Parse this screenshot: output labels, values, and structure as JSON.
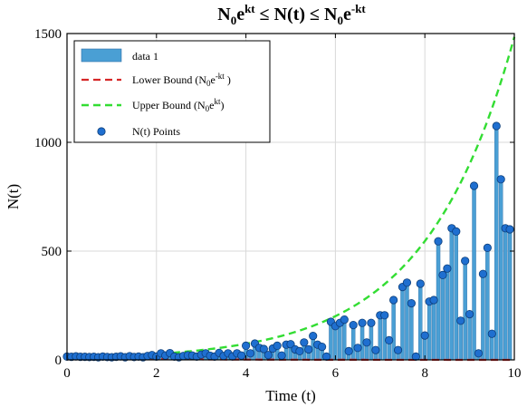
{
  "chart_data": {
    "type": "bar",
    "title": "N₀eᵏᵗ ≤ N(t) ≤ N₀e⁻ᵏᵗ",
    "title_parts": {
      "left_base": "N",
      "left_sub": "0",
      "left_e": "e",
      "left_sup": "kt",
      "middle": " ≤ N(t) ≤ ",
      "right_base": "N",
      "right_sub": "0",
      "right_e": "e",
      "right_sup": "-kt"
    },
    "xlabel": "Time (t)",
    "ylabel": "N(t)",
    "xlim": [
      0,
      10
    ],
    "ylim": [
      0,
      1500
    ],
    "xticks": [
      0,
      2,
      4,
      6,
      8,
      10
    ],
    "yticks": [
      0,
      500,
      1000,
      1500
    ],
    "grid": true,
    "legend_position": "top-left",
    "colors": {
      "bar_fill": "#4a9fd4",
      "bar_edge": "#2f6fa8",
      "marker_fill": "#1f6fd0",
      "marker_edge": "#0d3f7a",
      "lower_bound": "#d62728",
      "upper_bound": "#33dd33",
      "grid": "#d9d9d9"
    },
    "legend": [
      {
        "key": "data1",
        "label": "data 1",
        "kind": "bar"
      },
      {
        "key": "lower",
        "label_base": "Lower Bound (N",
        "label_sub": "0",
        "label_mid": "e",
        "label_sup": "-kt",
        "label_end": " )",
        "kind": "dashed-red"
      },
      {
        "key": "upper",
        "label_base": "Upper Bound (N",
        "label_sub": "0",
        "label_mid": "e",
        "label_sup": "kt",
        "label_end": ")",
        "kind": "dashed-green"
      },
      {
        "key": "points",
        "label": "N(t) Points",
        "kind": "marker"
      }
    ],
    "upper_bound": {
      "N0": 10,
      "k": 0.5
    },
    "lower_bound": {
      "N0": 10,
      "k": 0.5
    },
    "series": [
      {
        "name": "data 1",
        "x": [
          0.0,
          0.1,
          0.2,
          0.3,
          0.4,
          0.5,
          0.6,
          0.7,
          0.8,
          0.9,
          1.0,
          1.1,
          1.2,
          1.3,
          1.4,
          1.5,
          1.6,
          1.7,
          1.8,
          1.9,
          2.0,
          2.1,
          2.2,
          2.3,
          2.4,
          2.5,
          2.6,
          2.7,
          2.8,
          2.9,
          3.0,
          3.1,
          3.2,
          3.3,
          3.4,
          3.5,
          3.6,
          3.7,
          3.8,
          3.9,
          4.0,
          4.1,
          4.2,
          4.3,
          4.4,
          4.5,
          4.6,
          4.7,
          4.8,
          4.9,
          5.0,
          5.1,
          5.2,
          5.3,
          5.4,
          5.5,
          5.6,
          5.7,
          5.8,
          5.9,
          6.0,
          6.1,
          6.2,
          6.3,
          6.4,
          6.5,
          6.6,
          6.7,
          6.8,
          6.9,
          7.0,
          7.1,
          7.2,
          7.3,
          7.4,
          7.5,
          7.6,
          7.7,
          7.8,
          7.9,
          8.0,
          8.1,
          8.2,
          8.3,
          8.4,
          8.5,
          8.6,
          8.7,
          8.8,
          8.9,
          9.0,
          9.1,
          9.2,
          9.3,
          9.4,
          9.5,
          9.6,
          9.7,
          9.8,
          9.9
        ],
        "values": [
          15,
          14,
          16,
          14,
          14,
          13,
          14,
          12,
          15,
          13,
          12,
          14,
          16,
          12,
          17,
          13,
          15,
          12,
          18,
          22,
          15,
          30,
          20,
          31,
          15,
          12,
          18,
          21,
          20,
          15,
          24,
          30,
          19,
          15,
          32,
          18,
          30,
          16,
          30,
          20,
          65,
          30,
          75,
          55,
          50,
          22,
          52,
          65,
          20,
          70,
          72,
          48,
          40,
          80,
          48,
          110,
          70,
          60,
          15,
          175,
          155,
          170,
          185,
          40,
          160,
          55,
          170,
          80,
          170,
          45,
          205,
          205,
          90,
          275,
          45,
          335,
          355,
          260,
          15,
          350,
          112,
          268,
          275,
          545,
          390,
          420,
          605,
          590,
          180,
          455,
          210,
          800,
          30,
          395,
          515,
          120,
          1075,
          830,
          605,
          600
        ]
      }
    ]
  }
}
